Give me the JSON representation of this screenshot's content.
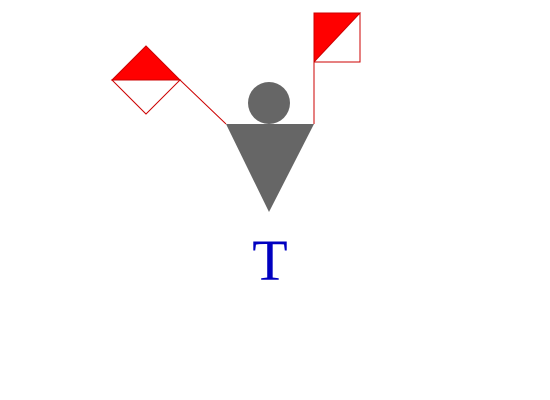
{
  "semaphore": {
    "letter": "T",
    "letter_color": "#0000c0",
    "figure_color": "#666666",
    "flag_red": "#ff0000",
    "flag_white": "#ffffff",
    "flag_border": "#cc0000"
  }
}
